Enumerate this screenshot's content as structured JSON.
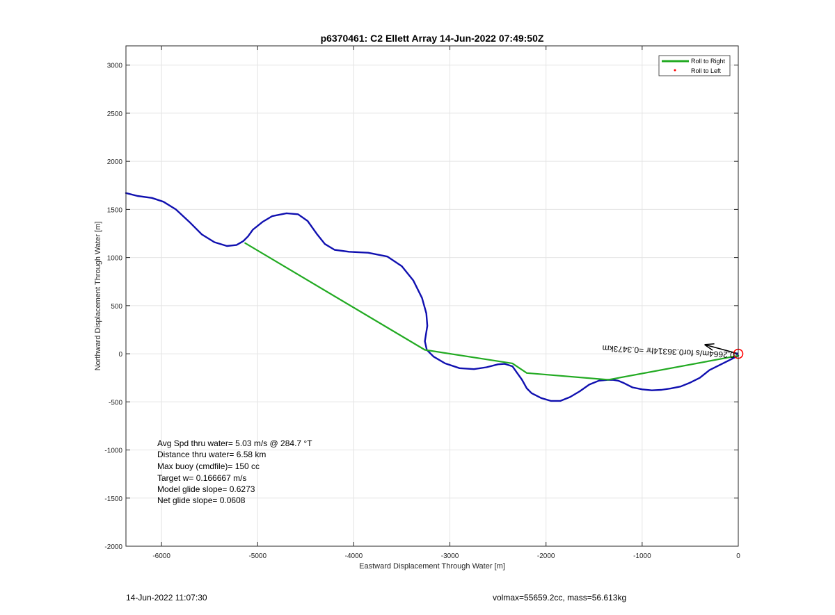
{
  "chart_data": {
    "type": "line",
    "title": "p6370461: C2 Ellett Array 14-Jun-2022 07:49:50Z",
    "xlabel": "Eastward Displacement Through Water [m]",
    "ylabel": "Northward Displacement Through Water [m]",
    "xlim": [
      -6370,
      0
    ],
    "ylim": [
      -2000,
      3200
    ],
    "xticks": [
      -6000,
      -5000,
      -4000,
      -3000,
      -2000,
      -1000,
      0
    ],
    "yticks": [
      -2000,
      -1500,
      -1000,
      -500,
      0,
      500,
      1000,
      1500,
      2000,
      2500,
      3000
    ],
    "grid": true,
    "legend": {
      "placement": "top-right",
      "entries": [
        {
          "label": "Roll to Right",
          "color": "#22aa22",
          "marker": "line"
        },
        {
          "label": "Roll to Left",
          "color": "#ff0000",
          "marker": "dot"
        }
      ]
    },
    "series": [
      {
        "name": "Roll to Right",
        "color": "#22aa22",
        "x": [
          -5130,
          -3260,
          -2350,
          -2200,
          -1350,
          0
        ],
        "y": [
          1150,
          40,
          -100,
          -200,
          -270,
          -20
        ]
      },
      {
        "color": "#1010b0",
        "x": [
          -6370,
          -6250,
          -6100,
          -5980,
          -5850,
          -5700,
          -5580,
          -5450,
          -5320,
          -5220,
          -5150,
          -5100,
          -5050,
          -4950,
          -4850,
          -4700,
          -4580,
          -4480,
          -4380,
          -4300,
          -4200,
          -4050,
          -3850,
          -3650,
          -3500,
          -3380,
          -3290,
          -3245,
          -3235,
          -3260,
          -3240,
          -3170,
          -3050,
          -2900,
          -2750,
          -2620,
          -2500,
          -2430,
          -2350,
          -2300,
          -2250,
          -2200,
          -2150,
          -2050,
          -1950,
          -1850,
          -1750,
          -1650,
          -1550,
          -1450,
          -1350,
          -1300,
          -1250,
          -1200,
          -1100,
          -1000,
          -900,
          -800,
          -700,
          -600,
          -500,
          -400,
          -300,
          -200,
          -100,
          -40,
          0
        ],
        "y": [
          1670,
          1640,
          1620,
          1580,
          1500,
          1360,
          1240,
          1160,
          1120,
          1130,
          1170,
          1220,
          1290,
          1370,
          1430,
          1460,
          1450,
          1380,
          1240,
          1140,
          1080,
          1060,
          1050,
          1010,
          910,
          760,
          580,
          420,
          290,
          130,
          40,
          -30,
          -100,
          -150,
          -160,
          -140,
          -110,
          -105,
          -130,
          -200,
          -270,
          -360,
          -410,
          -460,
          -490,
          -490,
          -450,
          -390,
          -320,
          -280,
          -270,
          -272,
          -280,
          -300,
          -350,
          -370,
          -380,
          -375,
          -360,
          -340,
          -300,
          -250,
          -170,
          -120,
          -70,
          -40,
          -20
        ]
      }
    ],
    "glider_marker": {
      "x": 0,
      "y": 0,
      "color": "#ff0000"
    },
    "annotations": [
      "Avg Spd thru water=  5.03 m/s @ 284.7 °T",
      "Distance thru water=  6.58 km",
      "Max buoy (cmdfile)= 150 cc",
      "Target w= 0.166667 m/s",
      "Model glide slope= 0.6273",
      "Net glide slope= 0.0608"
    ],
    "current_label": "0.2664m/s for0.36314hr =0.3473km",
    "current_arrow": {
      "from": [
        0,
        0
      ],
      "to": [
        -350,
        95
      ]
    }
  },
  "footer": {
    "date": "14-Jun-2022 11:07:30",
    "info": "volmax=55659.2cc, mass=56.613kg"
  }
}
